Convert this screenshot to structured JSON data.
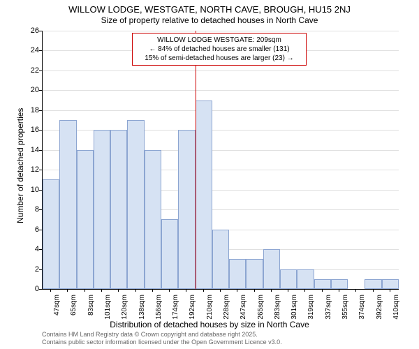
{
  "chart": {
    "type": "histogram",
    "title_main": "WILLOW LODGE, WESTGATE, NORTH CAVE, BROUGH, HU15 2NJ",
    "title_sub": "Size of property relative to detached houses in North Cave",
    "title_fontsize": 13,
    "subtitle_fontsize": 12,
    "ylabel": "Number of detached properties",
    "xlabel": "Distribution of detached houses by size in North Cave",
    "label_fontsize": 12,
    "background_color": "#ffffff",
    "grid_color": "#e0e0e0",
    "border_color": "#000000",
    "bar_fill": "#d6e2f3",
    "bar_border": "#8ca5d1",
    "marker_color": "#cc0000",
    "annotation_border": "#cc0000",
    "tick_fontsize": 11,
    "xtick_fontsize": 10,
    "ylim": [
      0,
      26
    ],
    "ytick_step": 2,
    "yticks": [
      0,
      2,
      4,
      6,
      8,
      10,
      12,
      14,
      16,
      18,
      20,
      22,
      24,
      26
    ],
    "xticks": [
      "47sqm",
      "65sqm",
      "83sqm",
      "101sqm",
      "120sqm",
      "138sqm",
      "156sqm",
      "174sqm",
      "192sqm",
      "210sqm",
      "228sqm",
      "247sqm",
      "265sqm",
      "283sqm",
      "301sqm",
      "319sqm",
      "337sqm",
      "355sqm",
      "374sqm",
      "392sqm",
      "410sqm"
    ],
    "bars": [
      11,
      17,
      14,
      16,
      16,
      17,
      14,
      7,
      16,
      19,
      6,
      3,
      3,
      4,
      2,
      2,
      1,
      1,
      0,
      1,
      1
    ],
    "marker_index": 9,
    "annotation": {
      "line1": "WILLOW LODGE WESTGATE: 209sqm",
      "line2": "← 84% of detached houses are smaller (131)",
      "line3": "15% of semi-detached houses are larger (23) →"
    },
    "footnote_line1": "Contains HM Land Registry data © Crown copyright and database right 2025.",
    "footnote_line2": "Contains public sector information licensed under the Open Government Licence v3.0.",
    "footnote_color": "#666666",
    "footnote_fontsize": 9
  }
}
